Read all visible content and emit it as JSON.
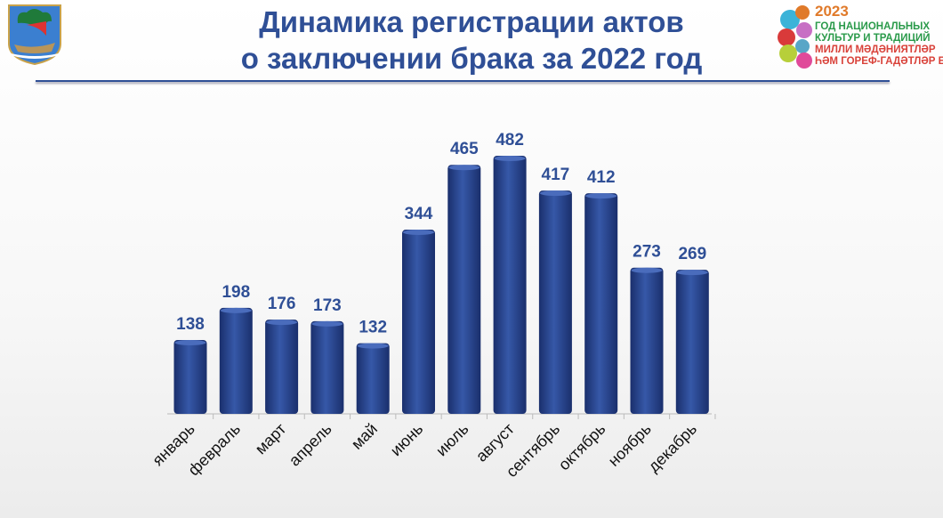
{
  "title_line1": "Динамика регистрации актов",
  "title_line2": "о заключении брака за 2022 год",
  "festival_logo": {
    "year": "2023",
    "line1": "ГОД НАЦИОНАЛЬНЫХ",
    "line2": "КУЛЬТУР И ТРАДИЦИЙ",
    "line3": "МИЛЛИ МӘДӘНИЯТЛӘР",
    "line4": "ҺӘМ ГОРЕФ-ГАДӘТЛӘР ЕЛЫ"
  },
  "colors": {
    "bar": "#24408a",
    "title": "#2f4f96",
    "label": "#2f4f96"
  },
  "chart_data": {
    "type": "bar",
    "title": "Динамика регистрации актов о заключении брака за 2022 год",
    "categories": [
      "январь",
      "февраль",
      "март",
      "апрель",
      "май",
      "июнь",
      "июль",
      "август",
      "сентябрь",
      "октябрь",
      "ноябрь",
      "декабрь"
    ],
    "values": [
      138,
      198,
      176,
      173,
      132,
      344,
      465,
      482,
      417,
      412,
      273,
      269
    ],
    "xlabel": "",
    "ylabel": "",
    "ylim": [
      0,
      500
    ],
    "grid": false
  }
}
